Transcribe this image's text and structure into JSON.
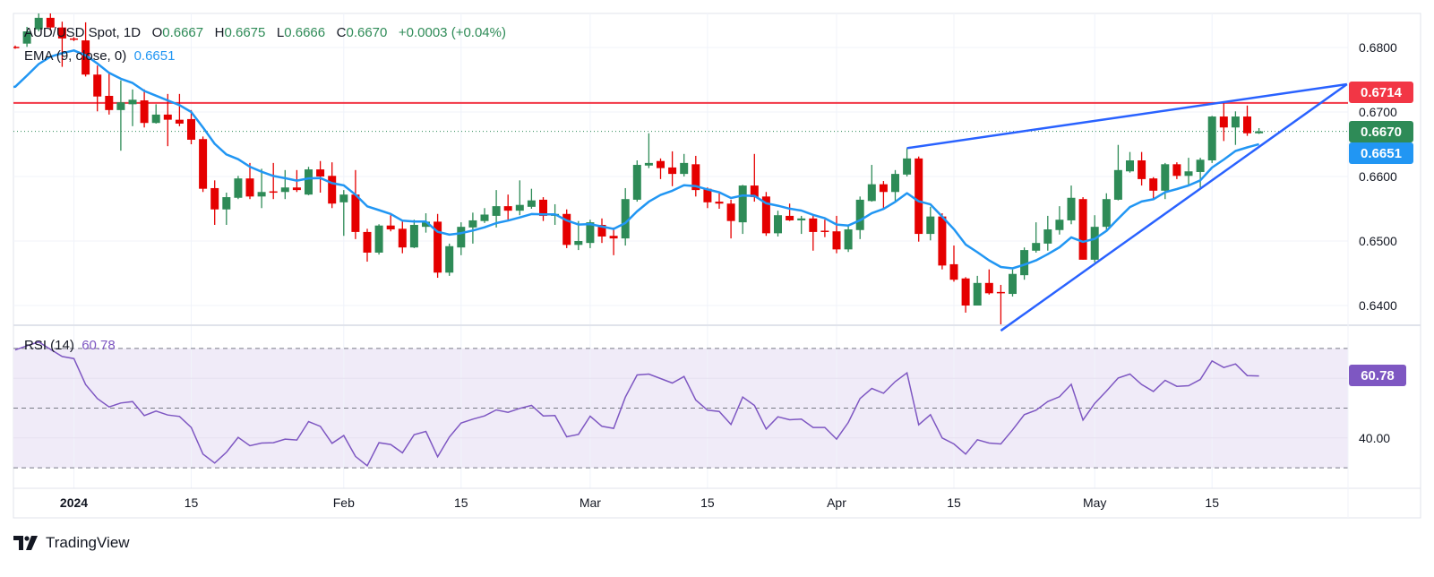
{
  "legend": {
    "symbol": "AUD/USD Spot, 1D",
    "o_label": "O",
    "o_value": "0.6667",
    "h_label": "H",
    "h_value": "0.6675",
    "l_label": "L",
    "l_value": "0.6666",
    "c_label": "C",
    "c_value": "0.6670",
    "change": "+0.0003 (+0.04%)",
    "ema_label": "EMA (9, close, 0)",
    "ema_value": "0.6651",
    "rsi_label": "RSI (14)",
    "rsi_value": "60.78"
  },
  "branding": {
    "logo_text": "TradingView"
  },
  "colors": {
    "up": "#2e8b57",
    "down": "#e50000",
    "ema": "#2196f3",
    "trendline": "#2962ff",
    "resistance": "#f23645",
    "rsi": "#7e57c2",
    "rsi_band": "#f0ebf8",
    "grid": "#f0f3fa"
  },
  "chart_data": [
    {
      "type": "candlestick",
      "pane": "price",
      "y_ticks": [
        "0.6800",
        "0.6700",
        "0.6600",
        "0.6500",
        "0.6400"
      ],
      "ylim": [
        0.6355,
        0.686
      ],
      "x_ticks": [
        {
          "label": "2024",
          "bar": 5
        },
        {
          "label": "15",
          "bar": 15
        },
        {
          "label": "Feb",
          "bar": 28
        },
        {
          "label": "15",
          "bar": 38
        },
        {
          "label": "Mar",
          "bar": 49
        },
        {
          "label": "15",
          "bar": 59
        },
        {
          "label": "Apr",
          "bar": 70
        },
        {
          "label": "15",
          "bar": 80
        },
        {
          "label": "May",
          "bar": 92
        },
        {
          "label": "15",
          "bar": 102
        }
      ],
      "ohlc": [
        [
          0.6801,
          0.6803,
          0.6798,
          0.68
        ],
        [
          0.6806,
          0.6832,
          0.6801,
          0.6825
        ],
        [
          0.6828,
          0.6853,
          0.6825,
          0.6846
        ],
        [
          0.6846,
          0.6853,
          0.6826,
          0.6831
        ],
        [
          0.6831,
          0.684,
          0.677,
          0.6814
        ],
        [
          0.6814,
          0.6816,
          0.681,
          0.6812
        ],
        [
          0.6811,
          0.6839,
          0.6755,
          0.6758
        ],
        [
          0.6758,
          0.6772,
          0.6701,
          0.6724
        ],
        [
          0.6725,
          0.676,
          0.6696,
          0.6703
        ],
        [
          0.6703,
          0.6749,
          0.664,
          0.6715
        ],
        [
          0.6712,
          0.6735,
          0.6678,
          0.6719
        ],
        [
          0.6718,
          0.6735,
          0.6676,
          0.6683
        ],
        [
          0.6683,
          0.6712,
          0.6682,
          0.6696
        ],
        [
          0.6696,
          0.6728,
          0.6647,
          0.6688
        ],
        [
          0.6688,
          0.6728,
          0.6678,
          0.6682
        ],
        [
          0.6689,
          0.6703,
          0.665,
          0.6657
        ],
        [
          0.6658,
          0.6662,
          0.6576,
          0.6581
        ],
        [
          0.6582,
          0.6594,
          0.6525,
          0.6549
        ],
        [
          0.6549,
          0.6575,
          0.6525,
          0.6568
        ],
        [
          0.6567,
          0.6601,
          0.6565,
          0.6597
        ],
        [
          0.6597,
          0.6621,
          0.6565,
          0.6569
        ],
        [
          0.6569,
          0.6612,
          0.6551,
          0.6576
        ],
        [
          0.6577,
          0.6621,
          0.6565,
          0.6575
        ],
        [
          0.6576,
          0.661,
          0.6565,
          0.6583
        ],
        [
          0.6583,
          0.661,
          0.6576,
          0.6579
        ],
        [
          0.6572,
          0.6615,
          0.6571,
          0.6611
        ],
        [
          0.6611,
          0.6624,
          0.6575,
          0.66
        ],
        [
          0.6601,
          0.6622,
          0.6551,
          0.6558
        ],
        [
          0.656,
          0.6579,
          0.6508,
          0.6572
        ],
        [
          0.6572,
          0.661,
          0.6503,
          0.6514
        ],
        [
          0.6514,
          0.6519,
          0.6468,
          0.6482
        ],
        [
          0.6482,
          0.6526,
          0.6479,
          0.6524
        ],
        [
          0.6524,
          0.654,
          0.6515,
          0.6518
        ],
        [
          0.6519,
          0.6532,
          0.6481,
          0.649
        ],
        [
          0.649,
          0.6533,
          0.6489,
          0.6525
        ],
        [
          0.6522,
          0.6543,
          0.6513,
          0.653
        ],
        [
          0.653,
          0.6542,
          0.6443,
          0.6451
        ],
        [
          0.6451,
          0.6496,
          0.6446,
          0.6492
        ],
        [
          0.649,
          0.6529,
          0.6478,
          0.6522
        ],
        [
          0.6521,
          0.6544,
          0.6496,
          0.6532
        ],
        [
          0.6531,
          0.6551,
          0.6528,
          0.6541
        ],
        [
          0.6539,
          0.6579,
          0.6521,
          0.6554
        ],
        [
          0.6554,
          0.6572,
          0.6533,
          0.6547
        ],
        [
          0.6547,
          0.6594,
          0.654,
          0.6556
        ],
        [
          0.6553,
          0.6581,
          0.655,
          0.6563
        ],
        [
          0.6564,
          0.6568,
          0.6531,
          0.6539
        ],
        [
          0.6539,
          0.6557,
          0.6525,
          0.6542
        ],
        [
          0.6542,
          0.6549,
          0.6489,
          0.6494
        ],
        [
          0.6494,
          0.6531,
          0.6486,
          0.65
        ],
        [
          0.6497,
          0.6533,
          0.6489,
          0.6529
        ],
        [
          0.6525,
          0.6535,
          0.6497,
          0.6507
        ],
        [
          0.6508,
          0.6521,
          0.6478,
          0.6504
        ],
        [
          0.6504,
          0.6582,
          0.6493,
          0.6565
        ],
        [
          0.6564,
          0.6625,
          0.6561,
          0.6618
        ],
        [
          0.6617,
          0.6667,
          0.6613,
          0.6621
        ],
        [
          0.6624,
          0.6628,
          0.6596,
          0.6613
        ],
        [
          0.6614,
          0.6639,
          0.6585,
          0.6604
        ],
        [
          0.6604,
          0.6635,
          0.66,
          0.6621
        ],
        [
          0.6619,
          0.6632,
          0.6569,
          0.6579
        ],
        [
          0.6581,
          0.6583,
          0.6551,
          0.656
        ],
        [
          0.6561,
          0.6574,
          0.655,
          0.6558
        ],
        [
          0.6558,
          0.6564,
          0.6504,
          0.6531
        ],
        [
          0.6529,
          0.6587,
          0.6511,
          0.6586
        ],
        [
          0.6586,
          0.6635,
          0.6561,
          0.6568
        ],
        [
          0.6569,
          0.6576,
          0.6508,
          0.6512
        ],
        [
          0.6512,
          0.6547,
          0.6507,
          0.654
        ],
        [
          0.6539,
          0.6558,
          0.6531,
          0.6532
        ],
        [
          0.6532,
          0.6539,
          0.6511,
          0.6535
        ],
        [
          0.6535,
          0.654,
          0.6485,
          0.6514
        ],
        [
          0.6516,
          0.6533,
          0.6506,
          0.6514
        ],
        [
          0.6515,
          0.6539,
          0.6481,
          0.6487
        ],
        [
          0.6487,
          0.6525,
          0.6483,
          0.6518
        ],
        [
          0.6517,
          0.6569,
          0.6503,
          0.6564
        ],
        [
          0.6562,
          0.6618,
          0.6561,
          0.6588
        ],
        [
          0.6588,
          0.6593,
          0.655,
          0.6576
        ],
        [
          0.6576,
          0.661,
          0.656,
          0.6604
        ],
        [
          0.6603,
          0.6644,
          0.66,
          0.6628
        ],
        [
          0.6628,
          0.6631,
          0.6499,
          0.6511
        ],
        [
          0.6511,
          0.6553,
          0.6501,
          0.6538
        ],
        [
          0.6538,
          0.6543,
          0.6456,
          0.6462
        ],
        [
          0.6464,
          0.6493,
          0.6437,
          0.644
        ],
        [
          0.6442,
          0.6444,
          0.6389,
          0.64
        ],
        [
          0.64,
          0.6446,
          0.64,
          0.6435
        ],
        [
          0.6435,
          0.6456,
          0.6417,
          0.6419
        ],
        [
          0.6421,
          0.6432,
          0.6361,
          0.6419
        ],
        [
          0.6418,
          0.6456,
          0.6414,
          0.6449
        ],
        [
          0.6447,
          0.649,
          0.644,
          0.6486
        ],
        [
          0.6485,
          0.6529,
          0.6482,
          0.6497
        ],
        [
          0.6496,
          0.6539,
          0.6485,
          0.6518
        ],
        [
          0.6517,
          0.6554,
          0.651,
          0.6533
        ],
        [
          0.6532,
          0.6586,
          0.6526,
          0.6567
        ],
        [
          0.6565,
          0.6568,
          0.6471,
          0.6471
        ],
        [
          0.6471,
          0.654,
          0.6467,
          0.6522
        ],
        [
          0.6522,
          0.6574,
          0.6515,
          0.6565
        ],
        [
          0.6564,
          0.6649,
          0.6563,
          0.661
        ],
        [
          0.6608,
          0.6638,
          0.6606,
          0.6625
        ],
        [
          0.6625,
          0.6638,
          0.6586,
          0.6596
        ],
        [
          0.6597,
          0.6599,
          0.6565,
          0.6578
        ],
        [
          0.6578,
          0.6621,
          0.6565,
          0.6619
        ],
        [
          0.6619,
          0.6622,
          0.6596,
          0.6601
        ],
        [
          0.6601,
          0.6629,
          0.6585,
          0.6608
        ],
        [
          0.6607,
          0.6629,
          0.6582,
          0.6626
        ],
        [
          0.6625,
          0.6694,
          0.6621,
          0.6693
        ],
        [
          0.6693,
          0.6714,
          0.6655,
          0.6676
        ],
        [
          0.6676,
          0.6701,
          0.6649,
          0.6693
        ],
        [
          0.6693,
          0.671,
          0.6663,
          0.6667
        ],
        [
          0.6667,
          0.6675,
          0.6666,
          0.667
        ]
      ],
      "ema": {
        "period": 9,
        "last": 0.6651
      },
      "horizontal_line": {
        "price": 0.6714,
        "label": "0.6714"
      },
      "last_price": {
        "price": 0.667,
        "label": "0.6670"
      },
      "ema_marker": {
        "price": 0.6651,
        "label": "0.6651"
      },
      "trendlines": [
        {
          "from": {
            "bar": 76,
            "price": 0.6644
          },
          "to": {
            "bar": 113.5,
            "price": 0.6743
          }
        },
        {
          "from": {
            "bar": 84,
            "price": 0.6361
          },
          "to": {
            "bar": 113.5,
            "price": 0.6743
          }
        }
      ]
    },
    {
      "type": "line",
      "pane": "rsi",
      "ylim": [
        25,
        78
      ],
      "y_ticks": [
        "40.00"
      ],
      "bands": [
        70,
        50,
        30
      ],
      "last_label": "60.78",
      "values": [
        69.5,
        70.9,
        72.2,
        69.7,
        67.3,
        66.6,
        57.9,
        53.2,
        50.4,
        51.7,
        52.2,
        47.5,
        49.0,
        47.7,
        47.2,
        43.5,
        34.6,
        31.6,
        35.2,
        40.2,
        37.4,
        38.3,
        38.4,
        39.6,
        39.3,
        45.5,
        43.9,
        38.2,
        40.8,
        33.8,
        30.7,
        38.4,
        37.8,
        35.0,
        41.1,
        42.2,
        33.7,
        40.3,
        45.0,
        46.3,
        47.4,
        49.4,
        48.6,
        49.9,
        50.9,
        47.4,
        47.5,
        40.4,
        41.2,
        47.3,
        43.9,
        43.2,
        53.7,
        61.1,
        61.4,
        59.9,
        58.4,
        60.6,
        52.7,
        49.3,
        48.9,
        44.5,
        53.7,
        50.9,
        43.0,
        47.1,
        46.1,
        46.3,
        43.5,
        43.5,
        39.6,
        45.2,
        53.2,
        56.6,
        55.0,
        58.9,
        61.8,
        44.4,
        47.8,
        40.0,
        38.0,
        34.6,
        39.4,
        38.3,
        38.0,
        42.7,
        47.8,
        49.3,
        52.2,
        53.8,
        58.0,
        46.0,
        51.6,
        55.7,
        60.1,
        61.4,
        57.9,
        55.6,
        59.3,
        57.3,
        57.5,
        59.6,
        65.8,
        63.6,
        64.8,
        60.9,
        60.78
      ]
    }
  ]
}
